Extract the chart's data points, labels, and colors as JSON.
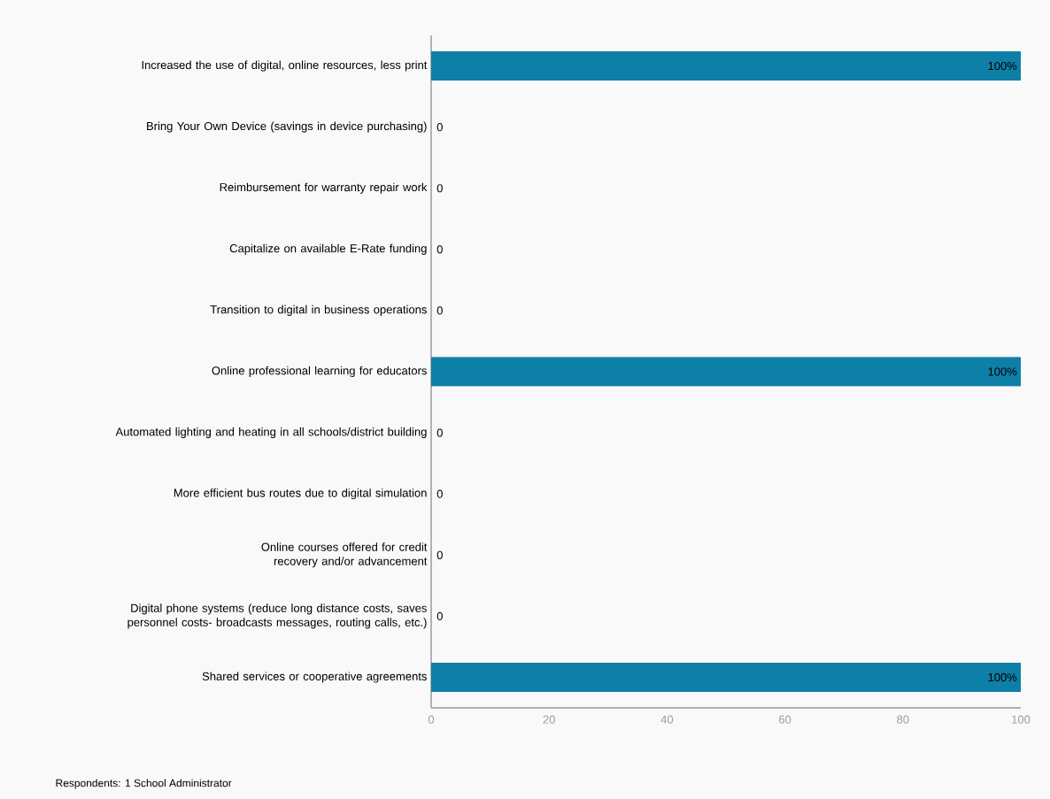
{
  "chart_data": {
    "type": "bar",
    "orientation": "horizontal",
    "color": "#0e7fa6",
    "categories": [
      "Increased the use of digital, online resources, less print",
      "Bring Your Own Device (savings in device purchasing)",
      "Reimbursement for warranty repair work",
      "Capitalize on available E-Rate funding",
      "Transition to digital in business operations",
      "Online professional learning for educators",
      "Automated lighting and heating in all schools/district building",
      "More efficient bus routes due to digital simulation",
      "Online courses offered for credit recovery and/or advancement",
      "Digital phone systems (reduce long distance costs, saves personnel costs- broadcasts messages, routing calls, etc.)",
      "Shared services or cooperative agreements"
    ],
    "values": [
      100,
      0,
      0,
      0,
      0,
      100,
      0,
      0,
      0,
      0,
      100
    ],
    "value_labels": [
      "100%",
      "0",
      "0",
      "0",
      "0",
      "100%",
      "0",
      "0",
      "0",
      "0",
      "100%"
    ],
    "xlim": [
      0,
      100
    ],
    "xticks": [
      0,
      20,
      40,
      60,
      80,
      100
    ],
    "annotations": [
      "Respondents: 1 School Administrator"
    ]
  }
}
